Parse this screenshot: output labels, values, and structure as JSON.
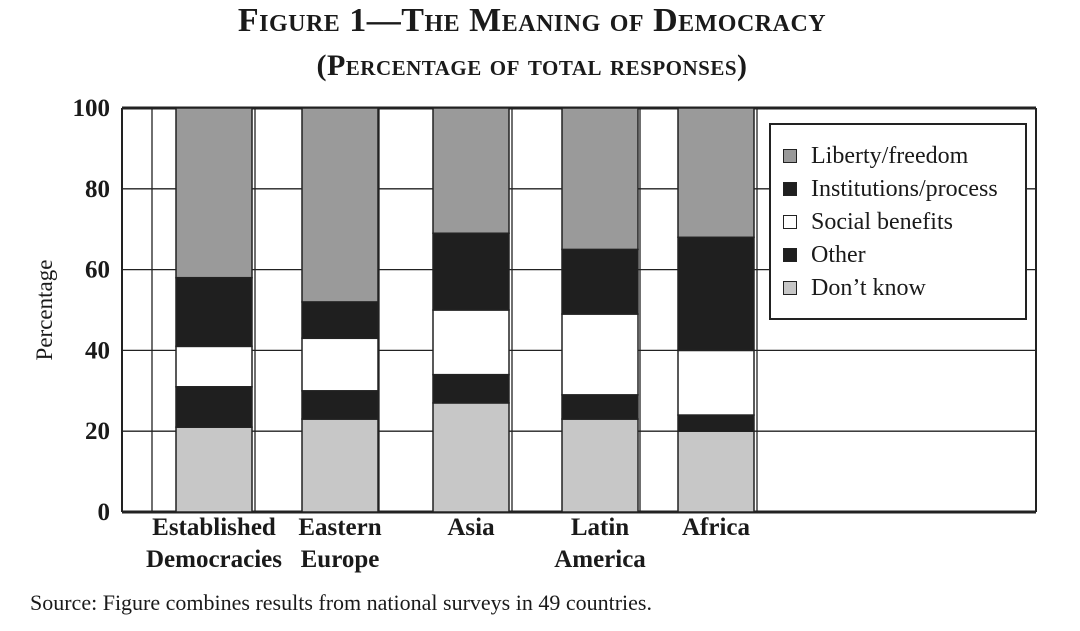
{
  "title": "Figure 1—The Meaning of Democracy",
  "subtitle": "(Percentage of total responses)",
  "source": "Source: Figure combines results from national surveys in 49 countries.",
  "colors": {
    "liberty": "#9a9a9a",
    "institutions": "#1f1f1f",
    "social": "#ffffff",
    "other": "#1f1f1f",
    "dontknow": "#c7c7c7"
  },
  "chart_data": {
    "type": "bar",
    "stacked": true,
    "title": "Figure 1—The Meaning of Democracy",
    "subtitle": "(Percentage of total responses)",
    "ylabel": "Percentage",
    "xlabel": "",
    "ylim": [
      0,
      100
    ],
    "yticks": [
      "0",
      "20",
      "40",
      "60",
      "80",
      "100"
    ],
    "grid": true,
    "legend_position": "top-right",
    "categories": [
      [
        "Established",
        "Democracies"
      ],
      [
        "Eastern",
        "Europe"
      ],
      [
        "Asia"
      ],
      [
        "Latin",
        "America"
      ],
      [
        "Africa"
      ]
    ],
    "series": [
      {
        "name": "Don’t know",
        "color_key": "dontknow",
        "values": [
          21,
          23,
          27,
          23,
          20
        ]
      },
      {
        "name": "Other",
        "color_key": "other",
        "values": [
          10,
          7,
          7,
          6,
          4
        ]
      },
      {
        "name": "Social benefits",
        "color_key": "social",
        "values": [
          10,
          13,
          16,
          20,
          16
        ]
      },
      {
        "name": "Institutions/process",
        "color_key": "institutions",
        "values": [
          17,
          9,
          19,
          16,
          28
        ]
      },
      {
        "name": "Liberty/freedom",
        "color_key": "liberty",
        "values": [
          42,
          48,
          31,
          35,
          32
        ]
      }
    ],
    "legend_order": [
      "Liberty/freedom",
      "Institutions/process",
      "Social benefits",
      "Other",
      "Don’t know"
    ]
  }
}
